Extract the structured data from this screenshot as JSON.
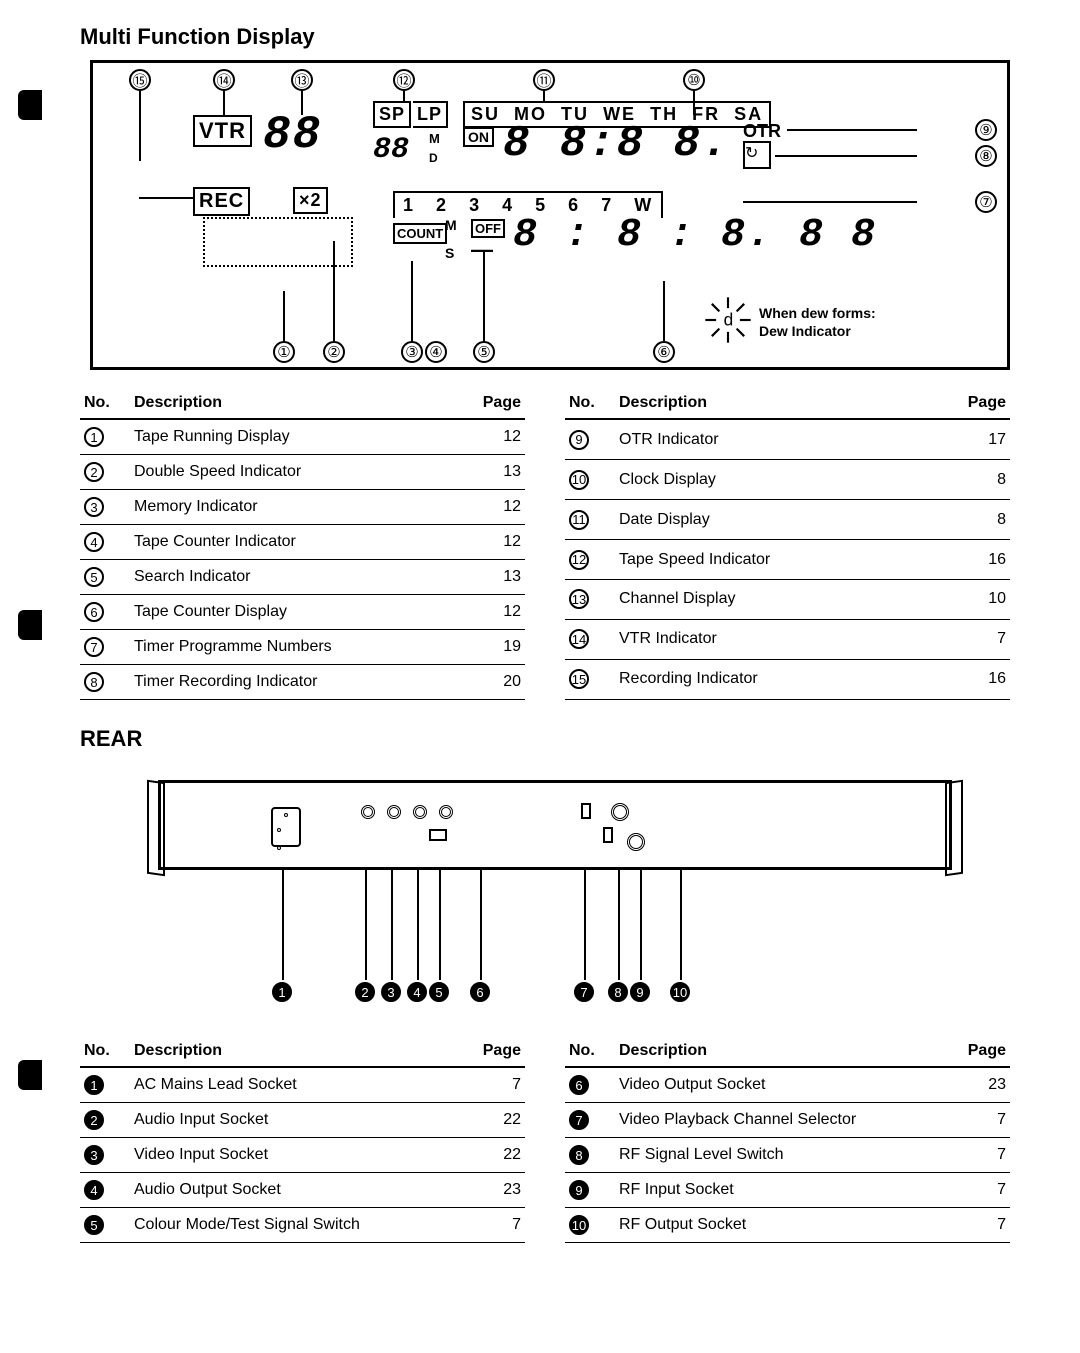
{
  "mfd": {
    "title": "Multi Function Display",
    "labels": {
      "vtr": "VTR",
      "rec": "REC",
      "x2": "×2",
      "sp": "SP",
      "lp": "LP",
      "days": [
        "SU",
        "MO",
        "TU",
        "WE",
        "TH",
        "FR",
        "SA"
      ],
      "on": "ON",
      "otr": "OTR",
      "count": "COUNT",
      "m": "M",
      "s": "S",
      "off": "OFF",
      "d_small": "D",
      "w": "W",
      "nums": [
        "1",
        "2",
        "3",
        "4",
        "5",
        "6",
        "7"
      ],
      "ch": "88",
      "counter": "88",
      "clock": "8 8:8 8.",
      "timer": "8 : 8 : 8. 8 8"
    },
    "dew_line1": "When dew forms:",
    "dew_line2": "Dew Indicator",
    "table_left": [
      {
        "n": "1",
        "d": "Tape Running Display",
        "p": "12"
      },
      {
        "n": "2",
        "d": "Double Speed Indicator",
        "p": "13"
      },
      {
        "n": "3",
        "d": "Memory Indicator",
        "p": "12"
      },
      {
        "n": "4",
        "d": "Tape Counter Indicator",
        "p": "12"
      },
      {
        "n": "5",
        "d": "Search Indicator",
        "p": "13"
      },
      {
        "n": "6",
        "d": "Tape Counter Display",
        "p": "12"
      },
      {
        "n": "7",
        "d": "Timer Programme Numbers",
        "p": "19"
      },
      {
        "n": "8",
        "d": "Timer Recording Indicator",
        "p": "20"
      }
    ],
    "table_right": [
      {
        "n": "9",
        "d": "OTR Indicator",
        "p": "17"
      },
      {
        "n": "10",
        "d": "Clock Display",
        "p": "8"
      },
      {
        "n": "11",
        "d": "Date Display",
        "p": "8"
      },
      {
        "n": "12",
        "d": "Tape Speed Indicator",
        "p": "16"
      },
      {
        "n": "13",
        "d": "Channel Display",
        "p": "10"
      },
      {
        "n": "14",
        "d": "VTR Indicator",
        "p": "7"
      },
      {
        "n": "15",
        "d": "Recording Indicator",
        "p": "16"
      }
    ],
    "headers": {
      "no": "No.",
      "desc": "Description",
      "page": "Page"
    }
  },
  "rear": {
    "title": "REAR",
    "table_left": [
      {
        "n": "1",
        "d": "AC Mains Lead Socket",
        "p": "7"
      },
      {
        "n": "2",
        "d": "Audio Input Socket",
        "p": "22"
      },
      {
        "n": "3",
        "d": "Video Input Socket",
        "p": "22"
      },
      {
        "n": "4",
        "d": "Audio Output Socket",
        "p": "23"
      },
      {
        "n": "5",
        "d": "Colour Mode/Test Signal Switch",
        "p": "7"
      }
    ],
    "table_right": [
      {
        "n": "6",
        "d": "Video Output Socket",
        "p": "23"
      },
      {
        "n": "7",
        "d": "Video Playback Channel Selector",
        "p": "7"
      },
      {
        "n": "8",
        "d": "RF Signal Level Switch",
        "p": "7"
      },
      {
        "n": "9",
        "d": "RF Input Socket",
        "p": "7"
      },
      {
        "n": "10",
        "d": "RF Output Socket",
        "p": "7"
      }
    ]
  }
}
